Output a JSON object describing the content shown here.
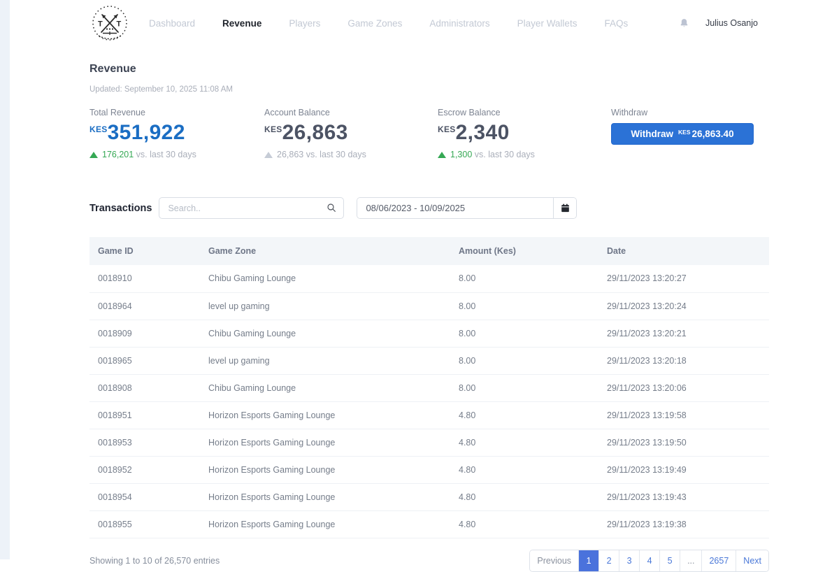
{
  "nav": {
    "user": "Julius Osanjo",
    "items": [
      {
        "label": "Dashboard",
        "active": false
      },
      {
        "label": "Revenue",
        "active": true
      },
      {
        "label": "Players",
        "active": false
      },
      {
        "label": "Game Zones",
        "active": false
      },
      {
        "label": "Administrators",
        "active": false
      },
      {
        "label": "Player Wallets",
        "active": false
      },
      {
        "label": "FAQs",
        "active": false
      }
    ]
  },
  "page": {
    "title": "Revenue",
    "updated": "Updated: September 10, 2025 11:08 AM"
  },
  "stats": [
    {
      "label": "Total Revenue",
      "currency": "KES",
      "value": "351,922",
      "value_color": "#1a6dc3",
      "delta": "176,201",
      "delta_text_color": "#35a854",
      "triangle_color": "#35a854",
      "delta_suffix": "vs. last 30 days"
    },
    {
      "label": "Account Balance",
      "currency": "KES",
      "value": "26,863",
      "value_color": "#4c5364",
      "delta": "26,863",
      "delta_text_color": "#a9aeb9",
      "triangle_color": "#c6ccd6",
      "delta_suffix": "vs. last 30 days"
    },
    {
      "label": "Escrow Balance",
      "currency": "KES",
      "value": "2,340",
      "value_color": "#4c5364",
      "delta": "1,300",
      "delta_text_color": "#35a854",
      "triangle_color": "#35a854",
      "delta_suffix": "vs. last 30 days"
    }
  ],
  "withdraw": {
    "label": "Withdraw",
    "button_text": "Withdraw",
    "button_currency": "KES",
    "button_amount": "26,863.40"
  },
  "transactions": {
    "title": "Transactions",
    "search_placeholder": "Search..",
    "date_range": "08/06/2023 - 10/09/2025"
  },
  "table": {
    "headers": [
      "Game ID",
      "Game Zone",
      "Amount (Kes)",
      "Date"
    ],
    "rows": [
      [
        "0018910",
        "Chibu Gaming Lounge",
        "8.00",
        "29/11/2023 13:20:27"
      ],
      [
        "0018964",
        "level up gaming",
        "8.00",
        "29/11/2023 13:20:24"
      ],
      [
        "0018909",
        "Chibu Gaming Lounge",
        "8.00",
        "29/11/2023 13:20:21"
      ],
      [
        "0018965",
        "level up gaming",
        "8.00",
        "29/11/2023 13:20:18"
      ],
      [
        "0018908",
        "Chibu Gaming Lounge",
        "8.00",
        "29/11/2023 13:20:06"
      ],
      [
        "0018951",
        "Horizon Esports Gaming Lounge",
        "4.80",
        "29/11/2023 13:19:58"
      ],
      [
        "0018953",
        "Horizon Esports Gaming Lounge",
        "4.80",
        "29/11/2023 13:19:50"
      ],
      [
        "0018952",
        "Horizon Esports Gaming Lounge",
        "4.80",
        "29/11/2023 13:19:49"
      ],
      [
        "0018954",
        "Horizon Esports Gaming Lounge",
        "4.80",
        "29/11/2023 13:19:43"
      ],
      [
        "0018955",
        "Horizon Esports Gaming Lounge",
        "4.80",
        "29/11/2023 13:19:38"
      ]
    ]
  },
  "footer": {
    "showing": "Showing 1 to 10 of 26,570 entries",
    "pagination": [
      {
        "label": "Previous",
        "type": "prev"
      },
      {
        "label": "1",
        "type": "page",
        "active": true
      },
      {
        "label": "2",
        "type": "page"
      },
      {
        "label": "3",
        "type": "page"
      },
      {
        "label": "4",
        "type": "page"
      },
      {
        "label": "5",
        "type": "page"
      },
      {
        "label": "...",
        "type": "ellipsis"
      },
      {
        "label": "2657",
        "type": "page"
      },
      {
        "label": "Next",
        "type": "next"
      }
    ]
  },
  "colors": {
    "accent_blue": "#2b72d6",
    "revenue_blue": "#1a6dc3",
    "positive_green": "#35a854",
    "muted_gray": "#bdc4cf",
    "active_page_bg": "#4a72dc",
    "left_strip": "#edf2f8",
    "table_header_bg": "#f3f6f9"
  }
}
